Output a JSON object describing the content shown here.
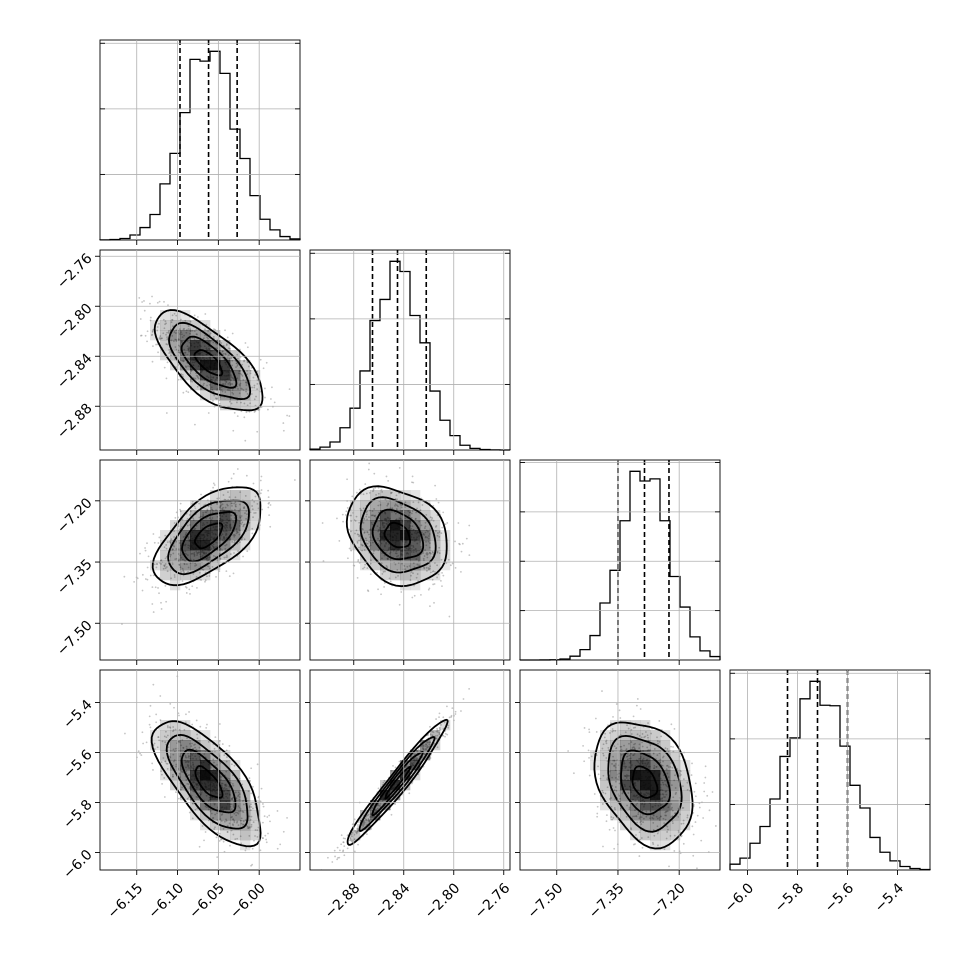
{
  "chart_data": {
    "type": "corner",
    "parameters": [
      {
        "mean": -6.062,
        "sigma": 0.033,
        "lim": [
          -6.195,
          -5.95
        ],
        "ticks": [
          -6.15,
          -6.1,
          -6.05,
          -6.0
        ],
        "tick_labels": [
          "−6.15",
          "−6.10",
          "−6.05",
          "−6.00"
        ],
        "quantiles": [
          -6.097,
          -6.062,
          -6.027
        ],
        "hist_ticks": 3
      },
      {
        "mean": -2.845,
        "sigma": 0.02,
        "lim": [
          -2.915,
          -2.755
        ],
        "ticks": [
          -2.88,
          -2.84,
          -2.8,
          -2.76
        ],
        "tick_labels": [
          "−2.88",
          "−2.84",
          "−2.80",
          "−2.76"
        ],
        "quantiles": [
          -2.865,
          -2.845,
          -2.822
        ],
        "hist_ticks": 3
      },
      {
        "mean": -7.285,
        "sigma": 0.06,
        "lim": [
          -7.59,
          -7.1
        ],
        "ticks": [
          -7.5,
          -7.35,
          -7.2
        ],
        "tick_labels": [
          "−7.50",
          "−7.35",
          "−7.20"
        ],
        "quantiles": [
          -7.35,
          -7.285,
          -7.225
        ],
        "hist_ticks": 4
      },
      {
        "mean": -5.72,
        "sigma": 0.125,
        "lim": [
          -6.07,
          -5.27
        ],
        "ticks": [
          -6.0,
          -5.8,
          -5.6,
          -5.4
        ],
        "tick_labels": [
          "−6.0",
          "−5.8",
          "−5.6",
          "−5.4"
        ],
        "quantiles": [
          -5.84,
          -5.72,
          -5.6
        ],
        "hist_ticks": 3
      }
    ],
    "correlations": [
      {
        "row": 1,
        "col": 0,
        "rho": -0.68
      },
      {
        "row": 2,
        "col": 0,
        "rho": 0.6
      },
      {
        "row": 2,
        "col": 1,
        "rho": -0.25
      },
      {
        "row": 3,
        "col": 0,
        "rho": -0.7
      },
      {
        "row": 3,
        "col": 1,
        "rho": 0.97
      },
      {
        "row": 3,
        "col": 2,
        "rho": -0.3
      }
    ],
    "contour_levels_sigma": [
      0.5,
      1.0,
      1.5,
      2.0
    ],
    "grid": true,
    "colors": {
      "points": "#7f7f7f",
      "contour": "#000000",
      "density": "#000000"
    }
  }
}
